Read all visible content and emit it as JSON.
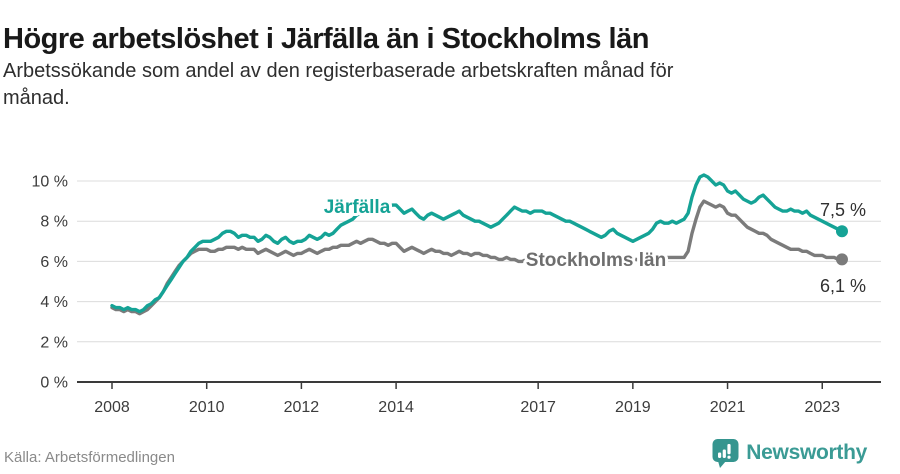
{
  "header": {
    "title": "Högre arbetslöshet i Järfälla än i Stockholms län",
    "subtitle_lines": [
      "Arbetssökande som andel av den registerbaserade arbetskraften månad för",
      "månad."
    ]
  },
  "chart_data": {
    "type": "line",
    "title": "Högre arbetslöshet i Järfälla än i Stockholms län",
    "subtitle": "Arbetssökande som andel av den registerbaserade arbetskraften månad för månad.",
    "frequency": "monthly",
    "x_start": "2008-01",
    "x_end": "2023-06",
    "xlabel": "",
    "ylabel": "",
    "unit": "%",
    "ylim": [
      0,
      10.6
    ],
    "grid": true,
    "legend_position": "inline-labels",
    "yticks": [
      {
        "value": 0,
        "label": "0 %"
      },
      {
        "value": 2,
        "label": "2 %"
      },
      {
        "value": 4,
        "label": "4 %"
      },
      {
        "value": 6,
        "label": "6 %"
      },
      {
        "value": 8,
        "label": "8 %"
      },
      {
        "value": 10,
        "label": "10 %"
      }
    ],
    "xticks": [
      {
        "year": 2008,
        "label": "2008"
      },
      {
        "year": 2010,
        "label": "2010"
      },
      {
        "year": 2012,
        "label": "2012"
      },
      {
        "year": 2014,
        "label": "2014"
      },
      {
        "year": 2017,
        "label": "2017"
      },
      {
        "year": 2019,
        "label": "2019"
      },
      {
        "year": 2021,
        "label": "2021"
      },
      {
        "year": 2023,
        "label": "2023"
      }
    ],
    "series": [
      {
        "name": "Järfälla",
        "color": "#15a396",
        "end_label": "7,5 %",
        "end_value": 7.5,
        "values": [
          3.8,
          3.7,
          3.7,
          3.6,
          3.7,
          3.6,
          3.6,
          3.5,
          3.6,
          3.8,
          3.9,
          4.1,
          4.2,
          4.5,
          4.8,
          5.1,
          5.4,
          5.7,
          6.0,
          6.2,
          6.5,
          6.7,
          6.9,
          7.0,
          7.0,
          7.0,
          7.1,
          7.2,
          7.4,
          7.5,
          7.5,
          7.4,
          7.2,
          7.3,
          7.3,
          7.2,
          7.2,
          7.0,
          7.1,
          7.3,
          7.2,
          7.0,
          6.9,
          7.1,
          7.2,
          7.0,
          6.9,
          7.0,
          7.0,
          7.1,
          7.3,
          7.2,
          7.1,
          7.2,
          7.4,
          7.3,
          7.4,
          7.6,
          7.8,
          7.9,
          8.0,
          8.1,
          8.3,
          8.4,
          8.5,
          8.5,
          8.6,
          8.5,
          8.6,
          8.7,
          8.7,
          8.8,
          8.8,
          8.6,
          8.4,
          8.5,
          8.6,
          8.4,
          8.2,
          8.1,
          8.3,
          8.4,
          8.3,
          8.2,
          8.1,
          8.2,
          8.3,
          8.4,
          8.5,
          8.3,
          8.2,
          8.1,
          8.0,
          8.0,
          7.9,
          7.8,
          7.7,
          7.8,
          7.9,
          8.1,
          8.3,
          8.5,
          8.7,
          8.6,
          8.5,
          8.5,
          8.4,
          8.5,
          8.5,
          8.5,
          8.4,
          8.4,
          8.3,
          8.2,
          8.1,
          8.0,
          8.0,
          7.9,
          7.8,
          7.7,
          7.6,
          7.5,
          7.4,
          7.3,
          7.2,
          7.3,
          7.5,
          7.6,
          7.4,
          7.3,
          7.2,
          7.1,
          7.0,
          7.1,
          7.2,
          7.3,
          7.4,
          7.6,
          7.9,
          8.0,
          7.9,
          7.9,
          8.0,
          7.9,
          8.0,
          8.1,
          8.4,
          9.2,
          9.8,
          10.2,
          10.3,
          10.2,
          10.0,
          9.8,
          9.9,
          9.8,
          9.5,
          9.4,
          9.5,
          9.3,
          9.1,
          9.0,
          8.9,
          9.0,
          9.2,
          9.3,
          9.1,
          8.9,
          8.7,
          8.6,
          8.5,
          8.5,
          8.6,
          8.5,
          8.5,
          8.4,
          8.5,
          8.3,
          8.2,
          8.1,
          8.0,
          7.9,
          7.8,
          7.7,
          7.6,
          7.5
        ]
      },
      {
        "name": "Stockholms län",
        "color": "#7b7b7b",
        "end_label": "6,1 %",
        "end_value": 6.1,
        "values": [
          3.7,
          3.6,
          3.6,
          3.5,
          3.6,
          3.5,
          3.5,
          3.4,
          3.5,
          3.6,
          3.8,
          4.0,
          4.2,
          4.5,
          4.9,
          5.2,
          5.5,
          5.8,
          6.0,
          6.2,
          6.4,
          6.5,
          6.6,
          6.6,
          6.6,
          6.5,
          6.5,
          6.6,
          6.6,
          6.7,
          6.7,
          6.7,
          6.6,
          6.7,
          6.6,
          6.6,
          6.6,
          6.4,
          6.5,
          6.6,
          6.5,
          6.4,
          6.3,
          6.4,
          6.5,
          6.4,
          6.3,
          6.4,
          6.4,
          6.5,
          6.6,
          6.5,
          6.4,
          6.5,
          6.6,
          6.6,
          6.7,
          6.7,
          6.8,
          6.8,
          6.8,
          6.9,
          7.0,
          6.9,
          7.0,
          7.1,
          7.1,
          7.0,
          6.9,
          6.9,
          6.8,
          6.9,
          6.9,
          6.7,
          6.5,
          6.6,
          6.7,
          6.6,
          6.5,
          6.4,
          6.5,
          6.6,
          6.5,
          6.5,
          6.4,
          6.4,
          6.3,
          6.4,
          6.5,
          6.4,
          6.4,
          6.3,
          6.4,
          6.4,
          6.3,
          6.3,
          6.2,
          6.2,
          6.1,
          6.1,
          6.2,
          6.1,
          6.1,
          6.0,
          6.0,
          6.1,
          6.0,
          6.0,
          6.0,
          6.0,
          5.9,
          6.0,
          6.0,
          6.1,
          6.0,
          6.0,
          5.9,
          6.0,
          6.0,
          5.9,
          6.0,
          5.9,
          5.9,
          6.0,
          6.0,
          6.0,
          6.1,
          6.0,
          6.0,
          6.0,
          6.1,
          6.1,
          6.1,
          6.1,
          6.0,
          6.1,
          6.1,
          6.2,
          6.3,
          6.2,
          6.2,
          6.2,
          6.2,
          6.2,
          6.2,
          6.2,
          6.5,
          7.4,
          8.1,
          8.7,
          9.0,
          8.9,
          8.8,
          8.7,
          8.8,
          8.7,
          8.4,
          8.3,
          8.3,
          8.1,
          7.9,
          7.7,
          7.6,
          7.5,
          7.4,
          7.4,
          7.3,
          7.1,
          7.0,
          6.9,
          6.8,
          6.7,
          6.6,
          6.6,
          6.6,
          6.5,
          6.5,
          6.4,
          6.3,
          6.3,
          6.3,
          6.2,
          6.2,
          6.2,
          6.1,
          6.1
        ]
      }
    ]
  },
  "footer": {
    "source": "Källa: Arbetsförmedlingen",
    "brand": "Newsworthy"
  },
  "colors": {
    "accent_teal": "#15a396",
    "line_gray": "#7b7b7b",
    "gridline": "#dcdcdc",
    "axis": "#3a3a3a",
    "logo_teal": "#3b9b95"
  }
}
